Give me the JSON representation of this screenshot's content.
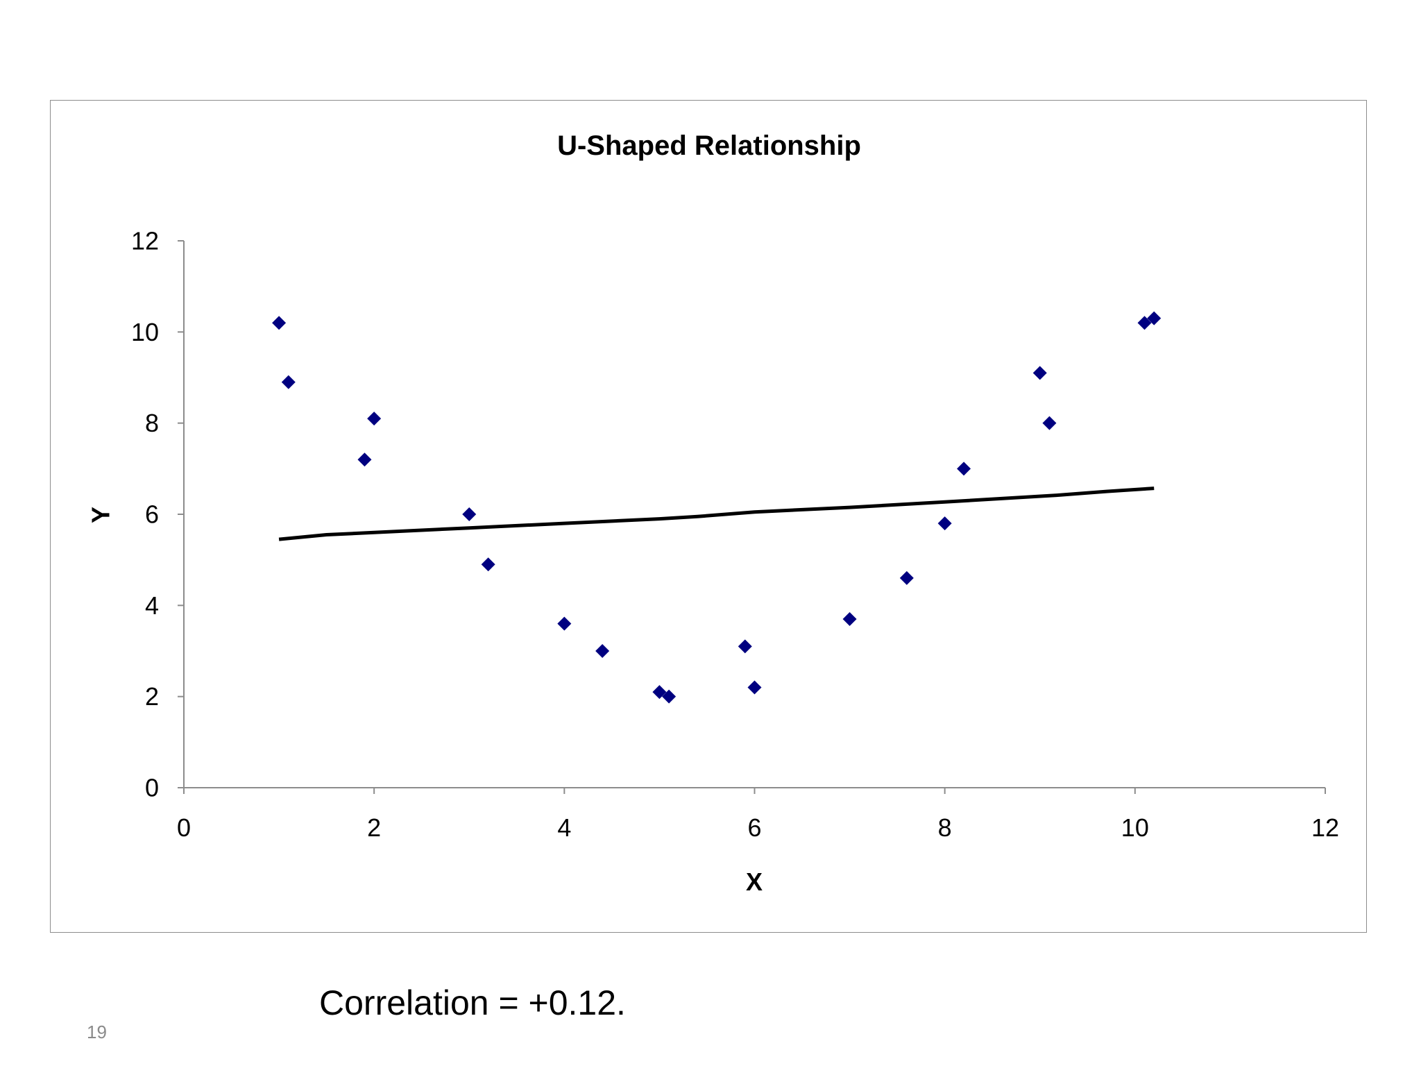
{
  "slide": {
    "caption": "Correlation = +0.12.",
    "page_number": "19"
  },
  "colors": {
    "marker": "#000080",
    "trendline": "#000000",
    "axis": "#8c8c8c"
  },
  "chart_data": {
    "type": "scatter",
    "title": "U-Shaped Relationship",
    "xlabel": "X",
    "ylabel": "Y",
    "xlim": [
      0,
      12
    ],
    "ylim": [
      0,
      12
    ],
    "xticks": [
      "0",
      "2",
      "4",
      "6",
      "8",
      "10",
      "12"
    ],
    "yticks": [
      "0",
      "2",
      "4",
      "6",
      "8",
      "10",
      "12"
    ],
    "grid": false,
    "legend": "none",
    "marker_shape": "diamond",
    "series": [
      {
        "type": "scatter",
        "x": [
          1.0,
          1.1,
          1.9,
          2.0,
          3.0,
          3.2,
          4.0,
          4.4,
          5.0,
          5.1,
          5.9,
          6.0,
          7.0,
          7.6,
          8.0,
          8.2,
          9.0,
          9.1,
          10.1,
          10.2
        ],
        "y": [
          10.2,
          8.9,
          7.2,
          8.1,
          6.0,
          4.9,
          3.6,
          3.0,
          2.1,
          2.0,
          3.1,
          2.2,
          3.7,
          4.6,
          5.8,
          7.0,
          9.1,
          8.0,
          10.2,
          10.3
        ]
      },
      {
        "type": "line",
        "x": [
          1.0,
          1.5,
          2.0,
          3.0,
          4.0,
          5.0,
          5.4,
          6.0,
          7.0,
          8.0,
          9.2,
          9.7,
          10.2
        ],
        "y": [
          5.45,
          5.55,
          5.6,
          5.7,
          5.8,
          5.9,
          5.95,
          6.05,
          6.15,
          6.27,
          6.42,
          6.5,
          6.57
        ]
      }
    ]
  }
}
